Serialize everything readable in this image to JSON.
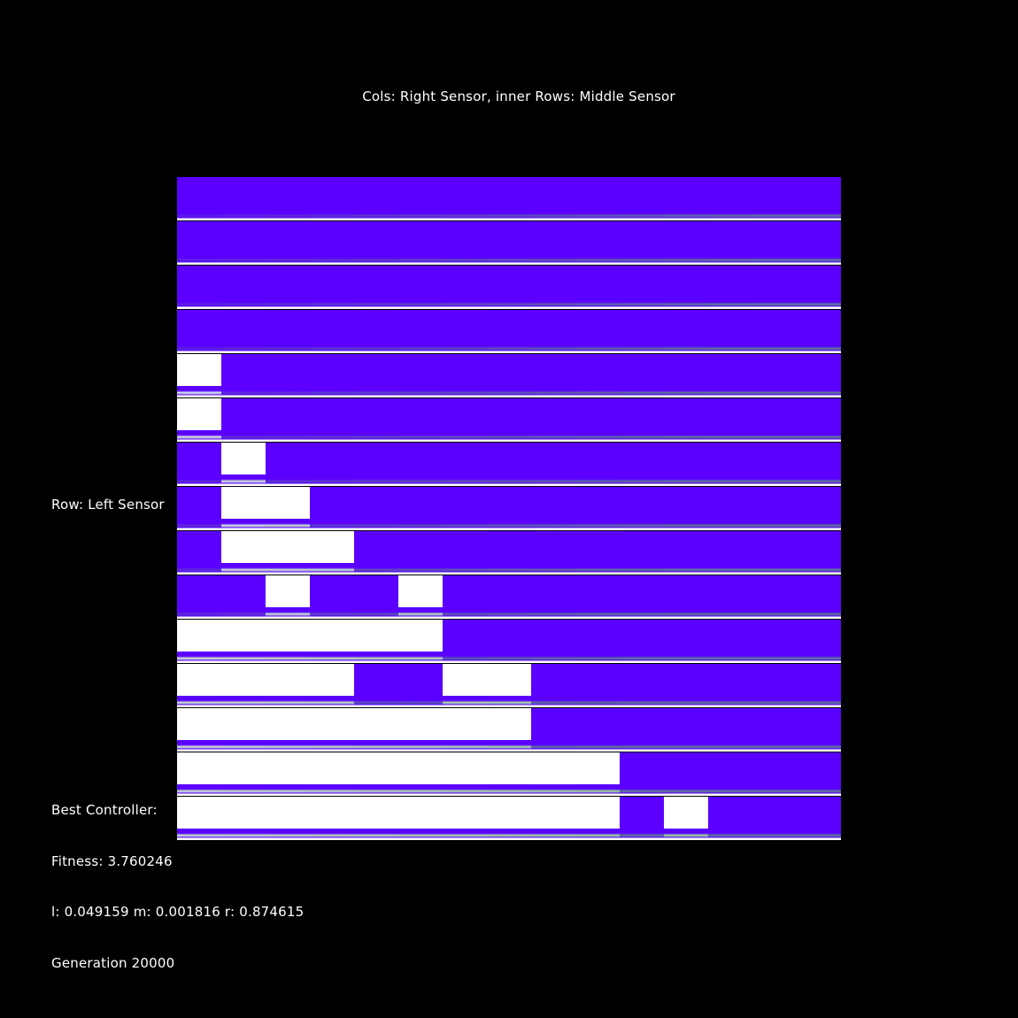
{
  "title": "Cols: Right Sensor, inner Rows: Middle Sensor",
  "row_label": "Row: Left Sensor",
  "best_label": "Best Controller:",
  "fitness_text": "Fitness: 3.760246",
  "lmr_text": "l: 0.049159  m: 0.001816  r: 0.874615",
  "generation_text": "Generation 20000",
  "colors": {
    "background": "#000000",
    "purple": "#5b00ff",
    "green": "#5fd640",
    "white": "#ffffff"
  },
  "chart_data": {
    "type": "heatmap",
    "rows": 15,
    "cols": 15,
    "title": "Cols: Right Sensor, inner Rows: Middle Sensor",
    "ylabel": "Row: Left Sensor",
    "white_cells": [
      [
        4,
        0
      ],
      [
        5,
        0
      ],
      [
        6,
        1
      ],
      [
        7,
        1
      ],
      [
        7,
        2
      ],
      [
        8,
        1
      ],
      [
        8,
        2
      ],
      [
        8,
        3
      ],
      [
        9,
        2
      ],
      [
        9,
        5
      ],
      [
        10,
        0
      ],
      [
        10,
        1
      ],
      [
        10,
        2
      ],
      [
        10,
        3
      ],
      [
        10,
        4
      ],
      [
        10,
        5
      ],
      [
        11,
        0
      ],
      [
        11,
        1
      ],
      [
        11,
        2
      ],
      [
        11,
        3
      ],
      [
        11,
        6
      ],
      [
        11,
        7
      ],
      [
        12,
        0
      ],
      [
        12,
        1
      ],
      [
        12,
        2
      ],
      [
        12,
        3
      ],
      [
        12,
        4
      ],
      [
        12,
        5
      ],
      [
        12,
        6
      ],
      [
        12,
        7
      ],
      [
        13,
        0
      ],
      [
        13,
        1
      ],
      [
        13,
        2
      ],
      [
        13,
        3
      ],
      [
        13,
        4
      ],
      [
        13,
        5
      ],
      [
        13,
        6
      ],
      [
        13,
        7
      ],
      [
        13,
        8
      ],
      [
        13,
        9
      ],
      [
        14,
        0
      ],
      [
        14,
        1
      ],
      [
        14,
        2
      ],
      [
        14,
        3
      ],
      [
        14,
        4
      ],
      [
        14,
        5
      ],
      [
        14,
        6
      ],
      [
        14,
        7
      ],
      [
        14,
        8
      ],
      [
        14,
        9
      ],
      [
        14,
        11
      ]
    ]
  }
}
